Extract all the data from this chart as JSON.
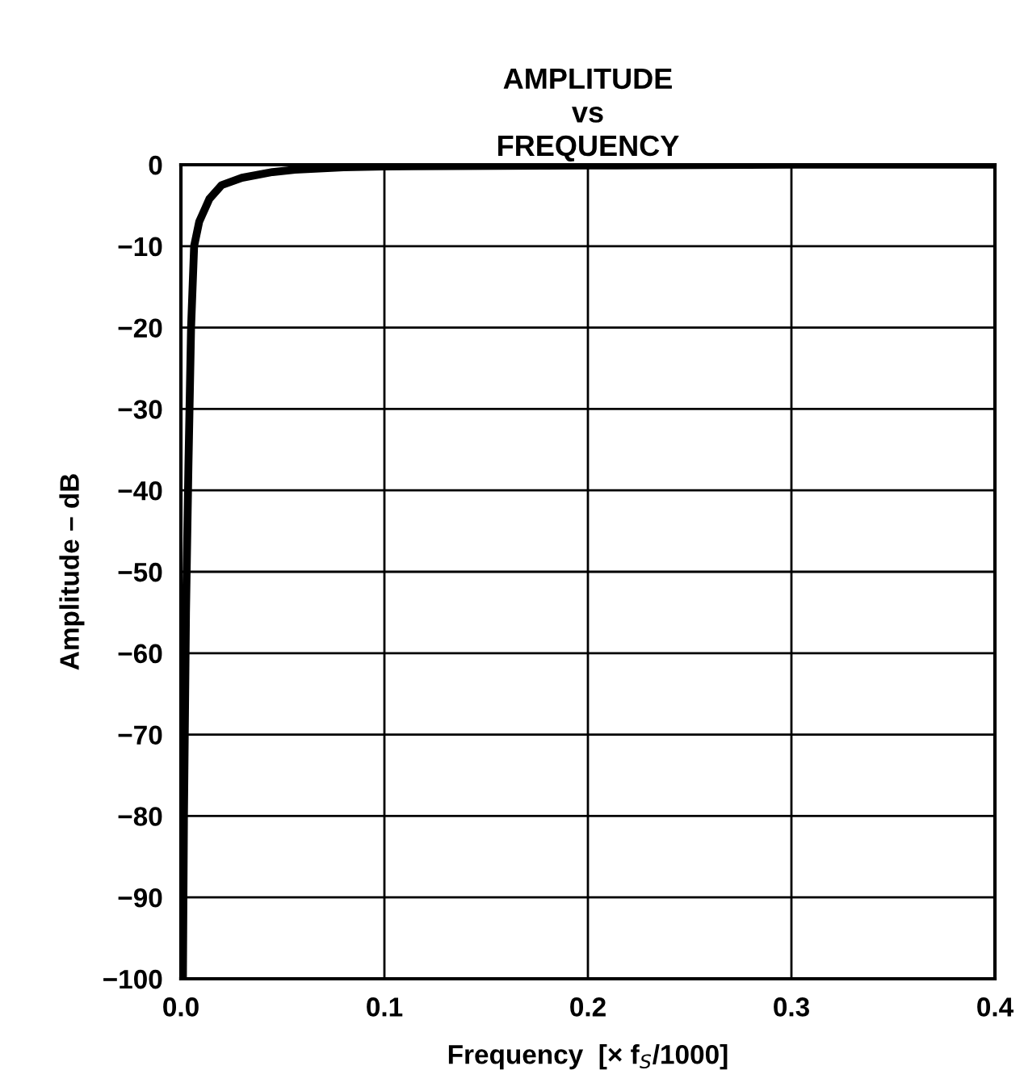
{
  "chart_data": {
    "type": "line",
    "title": "AMPLITUDE\nvs\nFREQUENCY",
    "xlabel": "Frequency  [× f$_{S}$/1000]",
    "ylabel": "Amplitude – dB",
    "series": [
      {
        "color": "#000000",
        "x": [
          0.001,
          0.0015,
          0.0025,
          0.0037,
          0.005,
          0.0065,
          0.009,
          0.014,
          0.02,
          0.03,
          0.045,
          0.056,
          0.08,
          0.1,
          0.2,
          0.3,
          0.4
        ],
        "values": [
          -100,
          -80,
          -55,
          -37,
          -20,
          -10,
          -7,
          -4.2,
          -2.5,
          -1.6,
          -0.9,
          -0.6,
          -0.3,
          -0.2,
          -0.1,
          0,
          0
        ]
      }
    ],
    "xlim": [
      0,
      0.4
    ],
    "xticks": [
      {
        "value": 0,
        "label": "0.0"
      },
      0.1,
      0.2,
      0.3,
      0.4
    ],
    "ylim": [
      -100,
      0
    ],
    "yticks": [
      {
        "value": -100,
        "label": "−100"
      },
      {
        "value": -90,
        "label": "−90"
      },
      {
        "value": -80,
        "label": "−80"
      },
      {
        "value": -70,
        "label": "−70"
      },
      {
        "value": -60,
        "label": "−60"
      },
      {
        "value": -50,
        "label": "−50"
      },
      {
        "value": -40,
        "label": "−40"
      },
      {
        "value": -30,
        "label": "−30"
      },
      {
        "value": -20,
        "label": "−20"
      },
      {
        "value": -10,
        "label": "−10"
      },
      0
    ],
    "grid": true,
    "marker": "none",
    "line_style": "solid"
  }
}
